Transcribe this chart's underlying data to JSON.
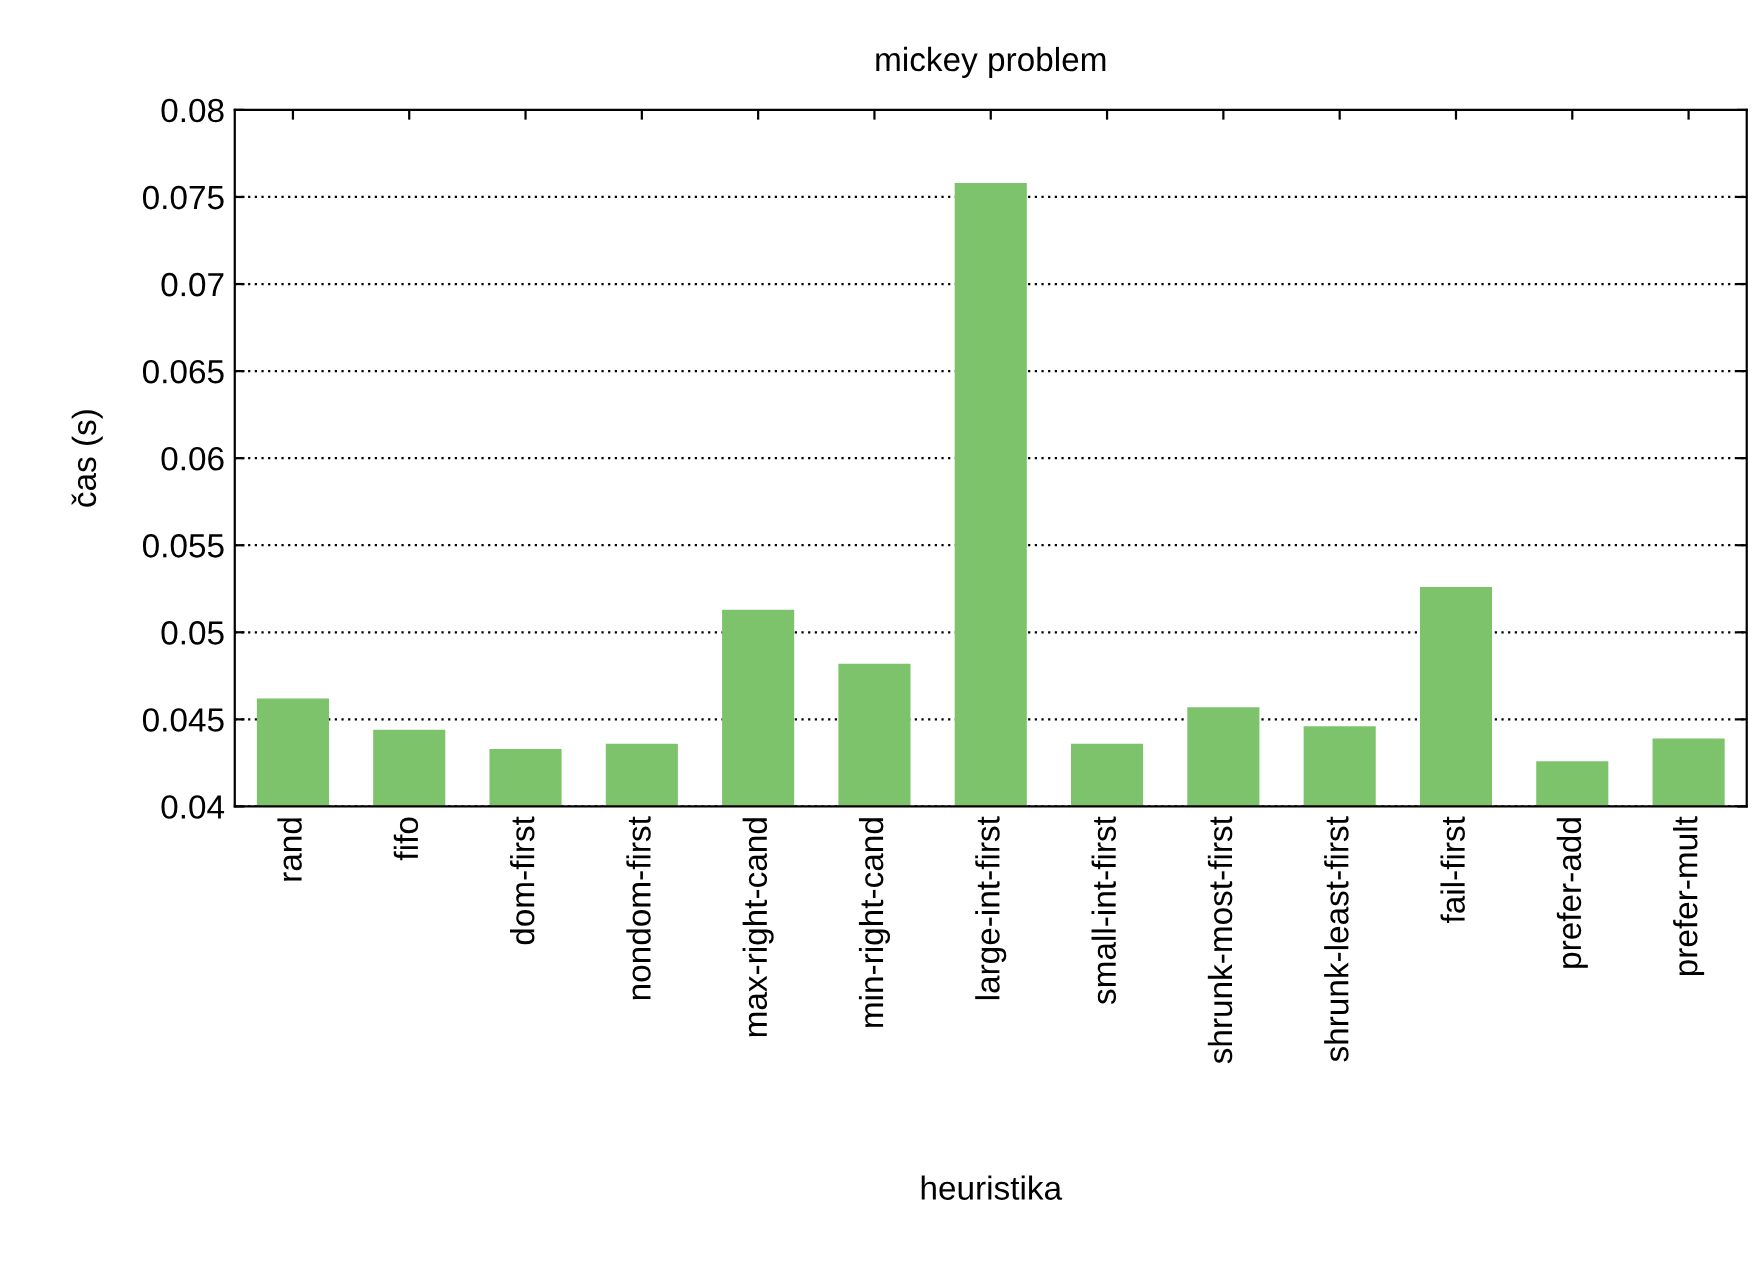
{
  "chart_data": {
    "type": "bar",
    "title": "mickey problem",
    "xlabel": "heuristika",
    "ylabel": "čas (s)",
    "categories": [
      "rand",
      "fifo",
      "dom-first",
      "nondom-first",
      "max-right-cand",
      "min-right-cand",
      "large-int-first",
      "small-int-first",
      "shrunk-most-first",
      "shrunk-least-first",
      "fail-first",
      "prefer-add",
      "prefer-mult"
    ],
    "values": [
      0.0462,
      0.0444,
      0.0433,
      0.0436,
      0.0513,
      0.0482,
      0.0758,
      0.0436,
      0.0457,
      0.0446,
      0.0526,
      0.0426,
      0.0439
    ],
    "color": "#7dc36b",
    "ylim": [
      0.04,
      0.08
    ],
    "yticks": [
      0.04,
      0.045,
      0.05,
      0.055,
      0.06,
      0.065,
      0.07,
      0.075,
      0.08
    ],
    "grid": "y",
    "legend": false
  }
}
